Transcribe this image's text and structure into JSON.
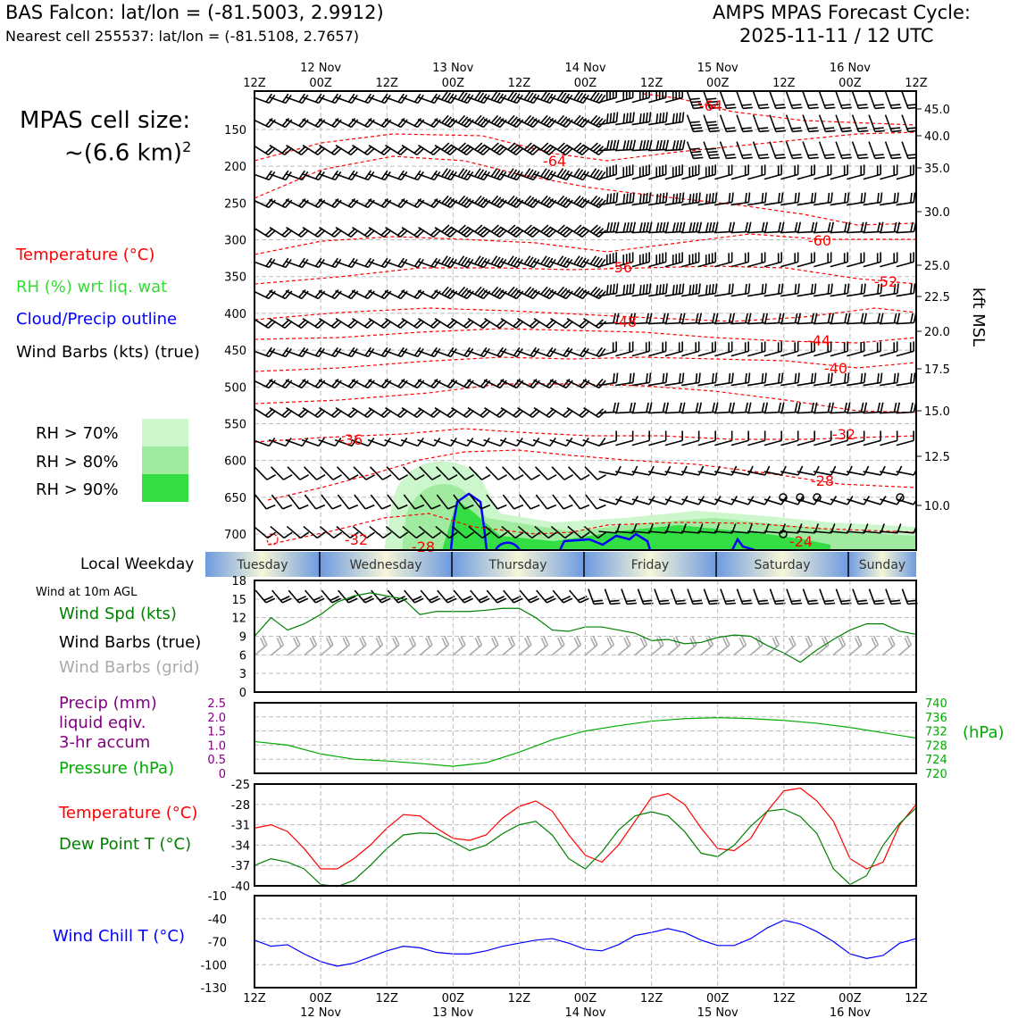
{
  "header": {
    "station": "BAS Falcon: lat/lon = (-81.5003, 2.9912)",
    "nearest": "Nearest cell 255537: lat/lon = (-81.5108, 2.7657)",
    "model_line1": "AMPS MPAS Forecast Cycle:",
    "model_line2": "2025-11-11 / 12 UTC"
  },
  "left_panel": {
    "cell_size_label": "MPAS cell size:",
    "cell_size_value": "~(6.6 km)",
    "cell_size_exp": "2",
    "legend": [
      {
        "label": "Temperature (°C)",
        "color": "#ff0000"
      },
      {
        "label": "RH (%) wrt liq. wat",
        "color": "#33dd33"
      },
      {
        "label": "Cloud/Precip outline",
        "color": "#0000ff"
      },
      {
        "label": "Wind Barbs (kts) (true)",
        "color": "#000000"
      }
    ],
    "rh_levels": [
      {
        "label": "RH > 70%",
        "color": "#ccf7cc"
      },
      {
        "label": "RH > 80%",
        "color": "#a0eba0"
      },
      {
        "label": "RH > 90%",
        "color": "#33dd44"
      }
    ]
  },
  "time_axis": {
    "top_hours": [
      "12Z",
      "00Z",
      "12Z",
      "00Z",
      "12Z",
      "00Z",
      "12Z",
      "00Z",
      "12Z",
      "00Z",
      "12Z"
    ],
    "dates": [
      "12 Nov",
      "13 Nov",
      "14 Nov",
      "15 Nov",
      "16 Nov"
    ]
  },
  "weekday_bar": {
    "label": "Local Weekday",
    "days": [
      "Tuesday",
      "Wednesday",
      "Thursday",
      "Friday",
      "Saturday",
      "Sunday"
    ]
  },
  "cross_section": {
    "pressure_ticks": [
      "150",
      "200",
      "250",
      "300",
      "350",
      "400",
      "450",
      "500",
      "550",
      "600",
      "650",
      "700"
    ],
    "pressure_values": [
      150,
      200,
      250,
      300,
      350,
      400,
      450,
      500,
      550,
      600,
      650,
      700
    ],
    "altitude_ticks": [
      "45.0",
      "40.0",
      "35.0",
      "30.0",
      "25.0",
      "22.5",
      "20.0",
      "17.5",
      "15.0",
      "12.5",
      "10.0"
    ],
    "altitude_values": [
      45.0,
      40.0,
      35.0,
      30.0,
      25.0,
      22.5,
      20.0,
      17.5,
      15.0,
      12.5,
      10.0
    ],
    "altitude_axis_label": "kft MSL",
    "temp_labels": [
      "-64",
      "-64",
      "-60",
      "-56",
      "-52",
      "-48",
      "-44",
      "-40",
      "-36",
      "-32",
      "-32",
      "-28",
      "-28",
      "-24"
    ]
  },
  "wind_panel": {
    "caption": "Wind at 10m AGL",
    "labels": [
      {
        "text": "Wind Spd (kts)",
        "color": "#008000"
      },
      {
        "text": "Wind Barbs (true)",
        "color": "#000000"
      },
      {
        "text": "Wind Barbs (grid)",
        "color": "#aaaaaa"
      }
    ],
    "y_ticks": [
      "18",
      "15",
      "12",
      "9",
      "6",
      "3",
      "0"
    ]
  },
  "precip_panel": {
    "labels": [
      {
        "text": "Precip (mm)",
        "color": "#800080"
      },
      {
        "text": "liquid eqiv.",
        "color": "#800080"
      },
      {
        "text": "3-hr accum",
        "color": "#800080"
      },
      {
        "text": "Pressure (hPa)",
        "color": "#00aa00"
      }
    ],
    "precip_ticks": [
      "2.5",
      "2.0",
      "1.5",
      "1.0",
      "0.5",
      "0"
    ],
    "pressure_ticks": [
      "740",
      "736",
      "732",
      "728",
      "724",
      "720"
    ],
    "pressure_unit": "(hPa)"
  },
  "temp_panel": {
    "labels": [
      {
        "text": "Temperature (°C)",
        "color": "#ff0000"
      },
      {
        "text": "Dew Point T (°C)",
        "color": "#008000"
      }
    ],
    "y_ticks": [
      "-25",
      "-28",
      "-31",
      "-34",
      "-37",
      "-40"
    ]
  },
  "chill_panel": {
    "label": "Wind Chill T (°C)",
    "label_color": "#0000ff",
    "y_ticks": [
      "-10",
      "-40",
      "-70",
      "-100",
      "-130"
    ]
  },
  "bottom_axis": {
    "hours": [
      "12Z",
      "00Z",
      "12Z",
      "00Z",
      "12Z",
      "00Z",
      "12Z",
      "00Z",
      "12Z",
      "00Z",
      "12Z"
    ],
    "dates": [
      "12 Nov",
      "13 Nov",
      "14 Nov",
      "15 Nov",
      "16 Nov"
    ]
  },
  "chart_data": [
    {
      "type": "line",
      "name": "wind_speed_10m",
      "x_hours": [
        0,
        3,
        6,
        9,
        12,
        15,
        18,
        21,
        24,
        27,
        30,
        33,
        36,
        39,
        42,
        45,
        48,
        51,
        54,
        57,
        60,
        63,
        66,
        69,
        72,
        75,
        78,
        81,
        84,
        87,
        90,
        93,
        96,
        99,
        102,
        105,
        108,
        111,
        114,
        117,
        120
      ],
      "series": [
        {
          "name": "Wind Spd (kts)",
          "color": "#008000",
          "values": [
            9,
            12,
            10,
            11,
            12.5,
            14.5,
            15.5,
            16,
            15.5,
            15,
            12.5,
            13,
            13,
            13,
            13.2,
            13.5,
            13.5,
            12,
            10,
            9.8,
            10.5,
            10.5,
            10,
            9.5,
            8.3,
            8.5,
            7.8,
            8,
            8.8,
            9.2,
            9.0,
            7.5,
            6.3,
            4.8,
            6.8,
            8.5,
            10,
            11,
            11,
            9.8,
            9.3
          ]
        }
      ],
      "ylim": [
        0,
        18
      ]
    },
    {
      "type": "line",
      "name": "surface_pressure",
      "x_hours": [
        0,
        6,
        12,
        18,
        24,
        30,
        36,
        42,
        48,
        54,
        60,
        66,
        72,
        78,
        84,
        90,
        96,
        102,
        108,
        114,
        120
      ],
      "series": [
        {
          "name": "Pressure (hPa)",
          "color": "#00aa00",
          "values": [
            729,
            728,
            725.5,
            724,
            723.5,
            722.8,
            722,
            723,
            726,
            729.5,
            732,
            733.5,
            734.8,
            735.5,
            735.8,
            735.5,
            735,
            734.2,
            733,
            731.5,
            730
          ]
        }
      ],
      "ylim": [
        720,
        740
      ],
      "precip_ylim": [
        0,
        2.5
      ]
    },
    {
      "type": "line",
      "name": "temperature_dewpoint",
      "x_hours": [
        0,
        3,
        6,
        9,
        12,
        15,
        18,
        21,
        24,
        27,
        30,
        33,
        36,
        39,
        42,
        45,
        48,
        51,
        54,
        57,
        60,
        63,
        66,
        69,
        72,
        75,
        78,
        81,
        84,
        87,
        90,
        93,
        96,
        99,
        102,
        105,
        108,
        111,
        114,
        117,
        120
      ],
      "series": [
        {
          "name": "Temperature (°C)",
          "color": "#ff0000",
          "values": [
            -31.5,
            -31,
            -32,
            -34.5,
            -37.5,
            -37.5,
            -36,
            -34,
            -31.5,
            -29.5,
            -29.7,
            -31.5,
            -33,
            -33.3,
            -32.5,
            -30,
            -28.3,
            -27.5,
            -29,
            -32.5,
            -35.5,
            -36.5,
            -34,
            -30.5,
            -27,
            -26.4,
            -28,
            -31.5,
            -34.5,
            -34.8,
            -33,
            -29,
            -26,
            -25.6,
            -27.5,
            -30.5,
            -36,
            -37.5,
            -36.5,
            -31,
            -28
          ]
        },
        {
          "name": "Dew Point T (°C)",
          "color": "#008000",
          "values": [
            -37,
            -36,
            -36.5,
            -37.5,
            -39.8,
            -40.1,
            -39.2,
            -37,
            -34.5,
            -32.5,
            -32.2,
            -32.3,
            -33.5,
            -34.8,
            -34,
            -32.3,
            -31,
            -30.5,
            -32.5,
            -36,
            -37.5,
            -35,
            -31.8,
            -29.7,
            -29.1,
            -29.7,
            -32,
            -35.2,
            -35.7,
            -34,
            -31.2,
            -29,
            -28.7,
            -29.8,
            -32.3,
            -37.5,
            -39.8,
            -38.5,
            -34,
            -30.8,
            -28.5
          ]
        }
      ],
      "ylim": [
        -40,
        -25
      ]
    },
    {
      "type": "line",
      "name": "wind_chill",
      "x_hours": [
        0,
        3,
        6,
        9,
        12,
        15,
        18,
        21,
        24,
        27,
        30,
        33,
        36,
        39,
        42,
        45,
        48,
        51,
        54,
        57,
        60,
        63,
        66,
        69,
        72,
        75,
        78,
        81,
        84,
        87,
        90,
        93,
        96,
        99,
        102,
        105,
        108,
        111,
        114,
        117,
        120
      ],
      "series": [
        {
          "name": "Wind Chill T (°C)",
          "color": "#0000ff",
          "values": [
            -68,
            -76,
            -74,
            -86,
            -96,
            -102,
            -98,
            -90,
            -82,
            -76,
            -78,
            -84,
            -86,
            -86,
            -82,
            -76,
            -72,
            -68,
            -66,
            -72,
            -80,
            -82,
            -74,
            -62,
            -58,
            -53,
            -58,
            -68,
            -75,
            -75,
            -66,
            -52,
            -42,
            -47,
            -57,
            -70,
            -86,
            -92,
            -88,
            -72,
            -66
          ]
        }
      ],
      "ylim": [
        -130,
        -10
      ]
    }
  ]
}
